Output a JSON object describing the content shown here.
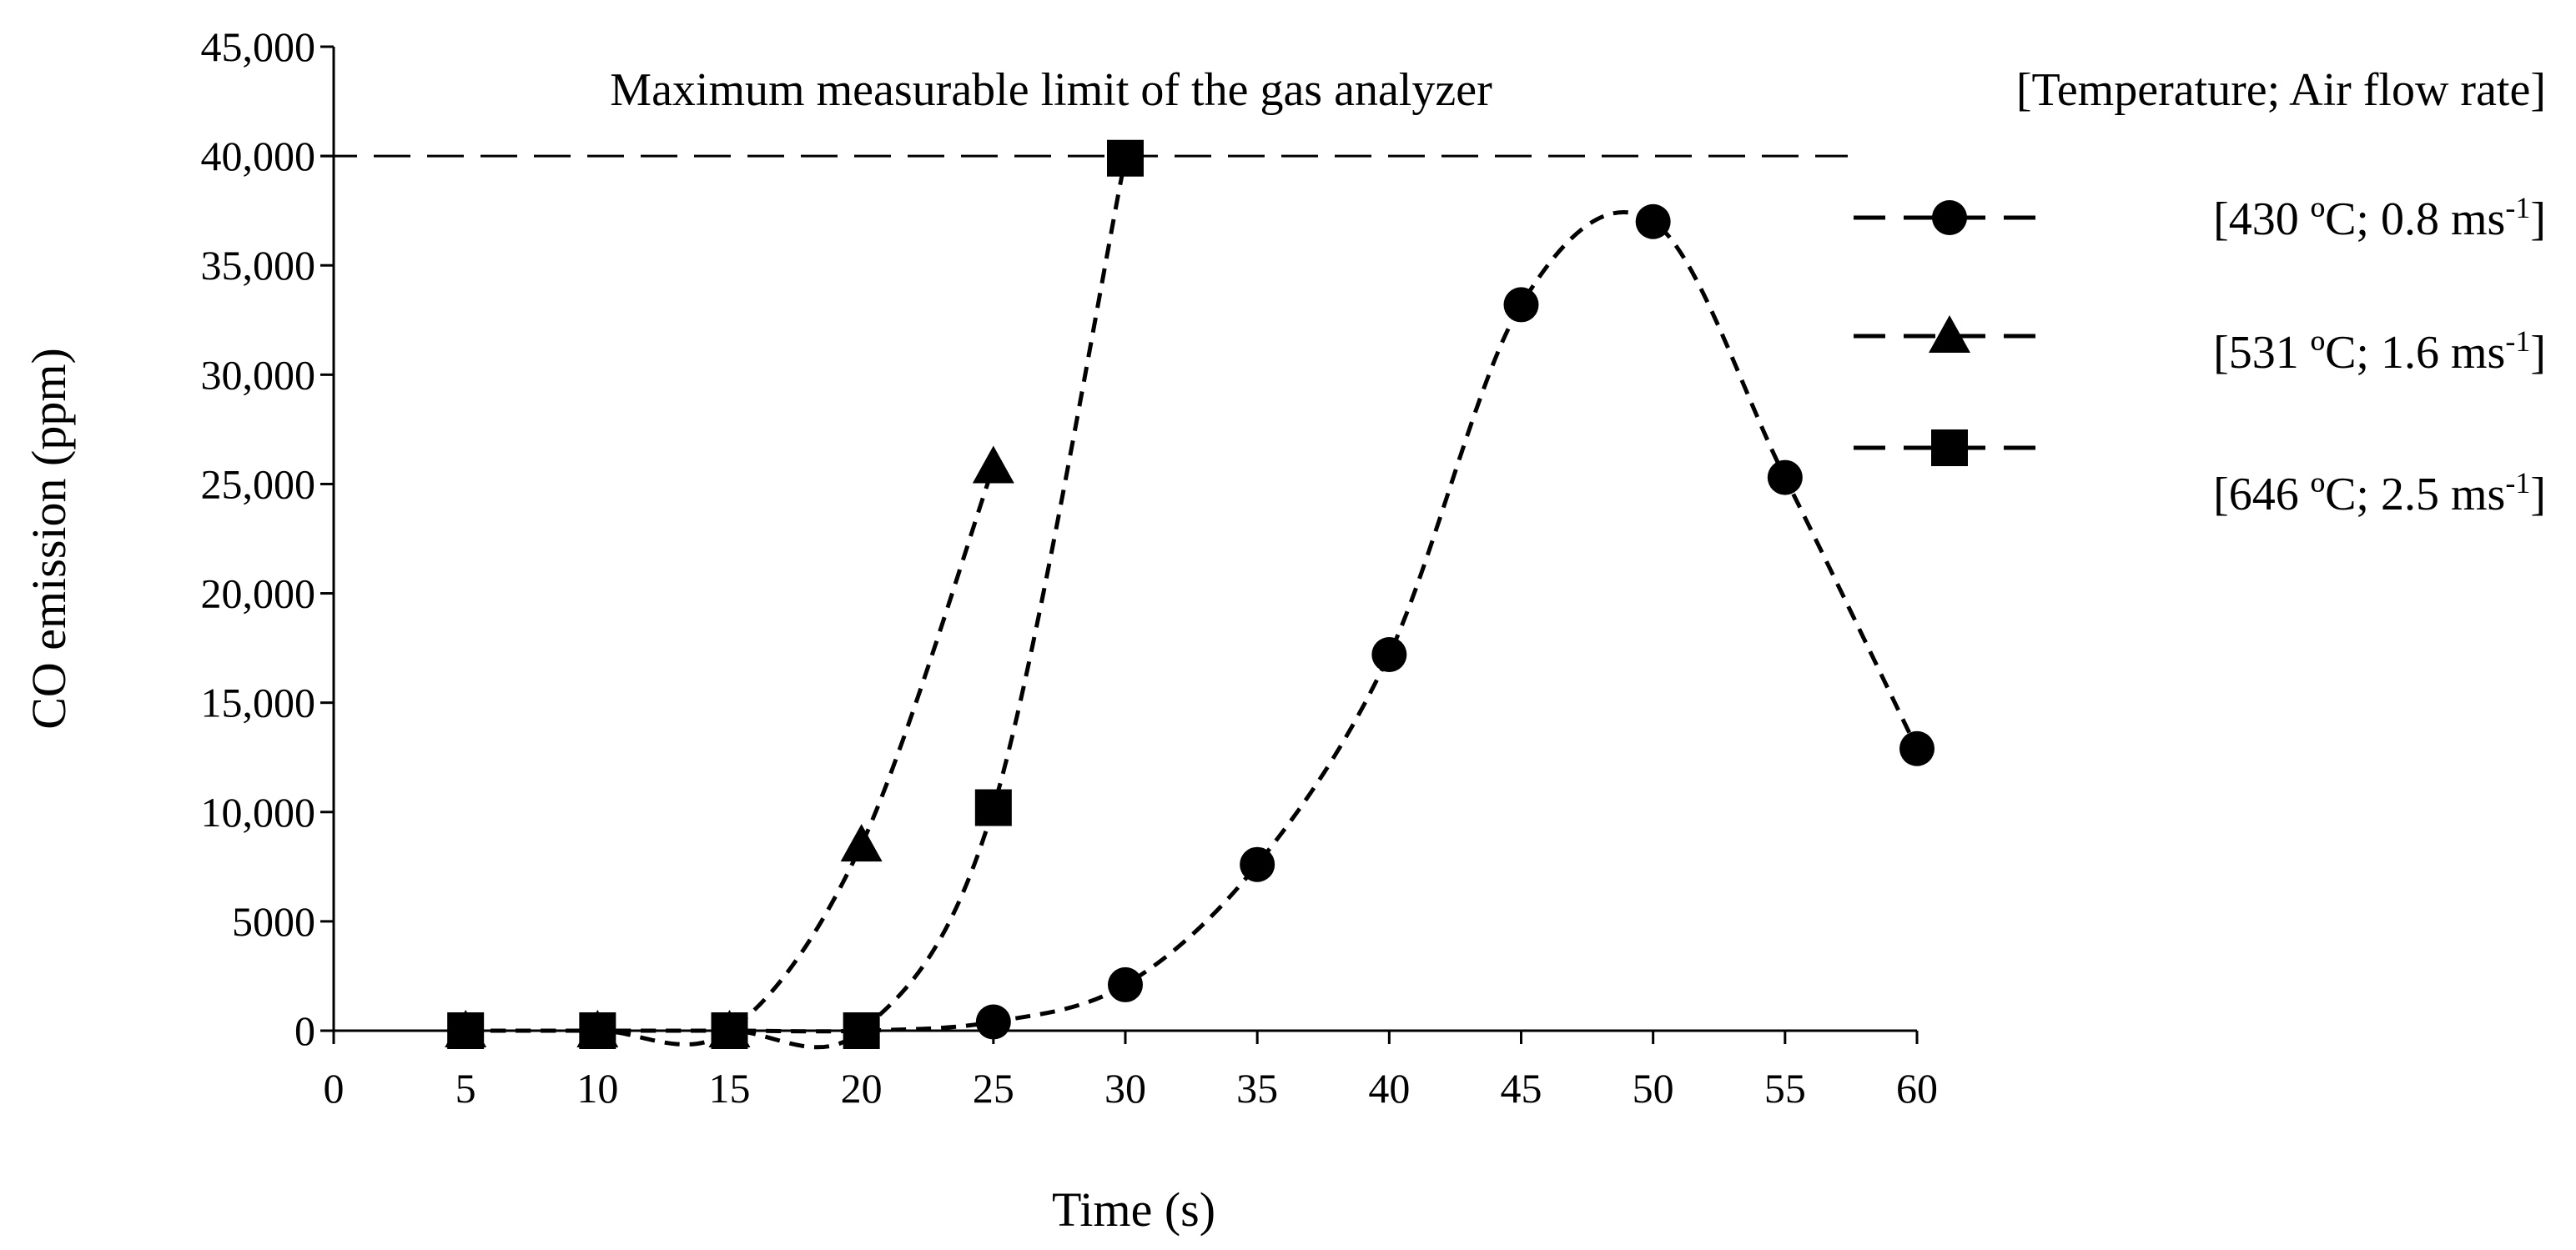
{
  "chart_data": {
    "type": "line",
    "xlabel": "Time (s)",
    "ylabel": "CO emission (ppm)",
    "xlim": [
      0,
      60
    ],
    "ylim": [
      0,
      45000
    ],
    "x_ticks": [
      "0",
      "5",
      "10",
      "15",
      "20",
      "25",
      "30",
      "35",
      "40",
      "45",
      "50",
      "55",
      "60"
    ],
    "y_ticks": [
      "0",
      "5000",
      "10,000",
      "15,000",
      "20,000",
      "25,000",
      "30,000",
      "35,000",
      "40,000",
      "45,000"
    ],
    "grid": false,
    "annotation": {
      "text": "Maximum measurable limit of the gas analyzer",
      "y": 40000
    },
    "legend": {
      "title": "[Temperature; Air flow rate]",
      "placement": "right"
    },
    "series": [
      {
        "name": "[430 ºC; 0.8 ms-1]",
        "label_parts": [
          "[430 ºC; 0.8 ms",
          "-1",
          "]"
        ],
        "marker": "circle",
        "x": [
          5,
          10,
          15,
          20,
          25,
          30,
          35,
          40,
          45,
          50,
          55,
          60
        ],
        "y": [
          0,
          0,
          0,
          0,
          400,
          2100,
          7600,
          17200,
          33200,
          37000,
          25300,
          12900
        ]
      },
      {
        "name": "[531 ºC; 1.6 ms-1]",
        "label_parts": [
          "[531 ºC; 1.6 ms",
          "-1",
          "]"
        ],
        "marker": "triangle",
        "x": [
          5,
          10,
          15,
          20,
          25
        ],
        "y": [
          0,
          0,
          0,
          8500,
          25800
        ]
      },
      {
        "name": "[646 ºC; 2.5 ms-1]",
        "label_parts": [
          "[646 ºC; 2.5 ms",
          "-1",
          "]"
        ],
        "marker": "square",
        "x": [
          5,
          10,
          15,
          20,
          25,
          30
        ],
        "y": [
          0,
          0,
          0,
          0,
          10200,
          39900
        ]
      }
    ]
  }
}
